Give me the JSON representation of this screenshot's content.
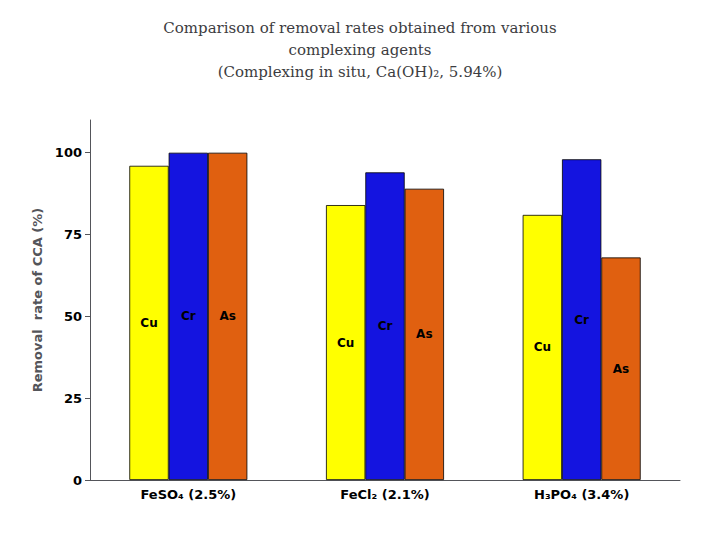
{
  "chart_data": {
    "type": "bar",
    "title": "Comparison of removal rates obtained from various\ncomplexing agents\n(Complexing in situ, Ca(OH)₂, 5.94%)",
    "ylabel": "Removal  rate of CCA (%)",
    "categories": [
      "FeSO₄ (2.5%)",
      "FeCl₂ (2.1%)",
      "H₃PO₄ (3.4%)"
    ],
    "series": [
      {
        "name": "Cu",
        "color": "#FFFF00",
        "values": [
          96,
          84,
          81
        ]
      },
      {
        "name": "Cr",
        "color": "#1414E0",
        "values": [
          100,
          94,
          98
        ]
      },
      {
        "name": "As",
        "color": "#E06010",
        "values": [
          100,
          89,
          68
        ]
      }
    ],
    "ylim": [
      0,
      110
    ],
    "yticks": [
      0,
      25,
      50,
      75,
      100
    ],
    "grid": false
  }
}
